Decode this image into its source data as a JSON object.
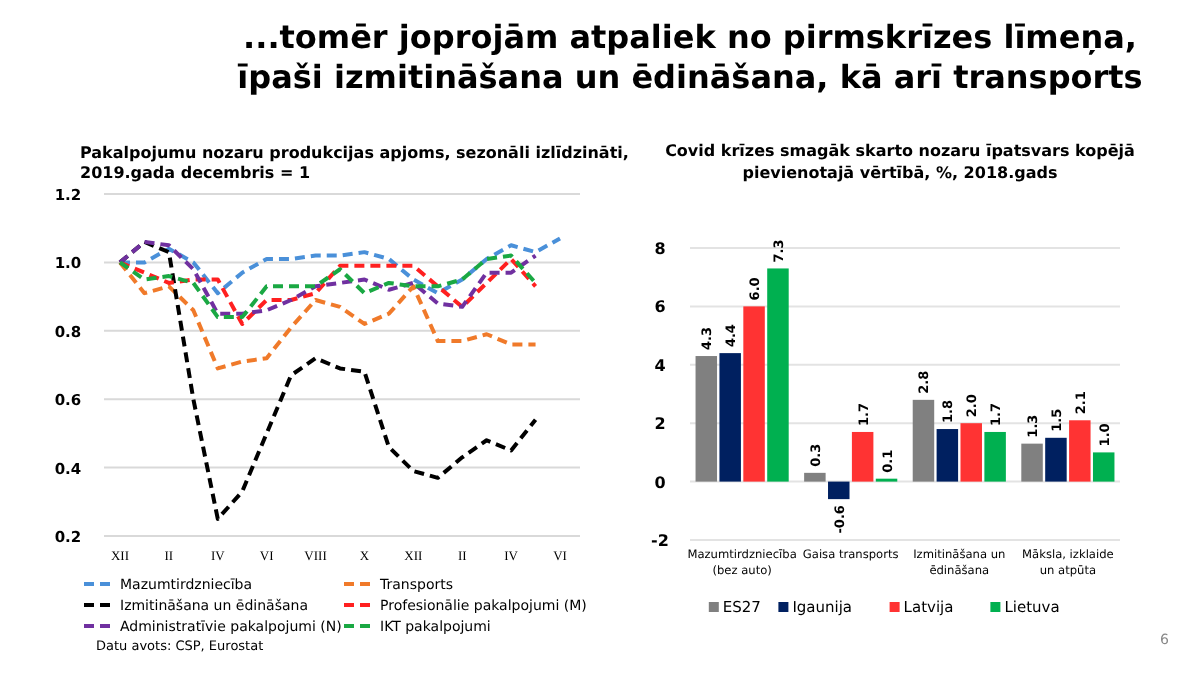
{
  "chart_data": [
    {
      "type": "line",
      "title": "Pakalpojumu nozaru produkcijas apjoms, sezonāli izlīdzināti, 2019.gada decembris = 1",
      "categories": [
        "XII",
        null,
        "II",
        null,
        "IV",
        null,
        "VI",
        null,
        "VIII",
        null,
        "X",
        null,
        "XII",
        null,
        "II",
        null,
        "IV",
        null,
        "VI"
      ],
      "series": [
        {
          "name": "Mazumtirdzniecība",
          "color": "#4a90d9",
          "values": [
            1.0,
            1.0,
            1.04,
            1.0,
            0.91,
            0.97,
            1.01,
            1.01,
            1.02,
            1.02,
            1.03,
            1.01,
            0.95,
            0.91,
            0.95,
            1.01,
            1.05,
            1.03,
            1.07
          ]
        },
        {
          "name": "Transports",
          "color": "#f07a2a",
          "values": [
            1.0,
            0.91,
            0.93,
            0.86,
            0.69,
            0.71,
            0.72,
            0.81,
            0.89,
            0.87,
            0.82,
            0.85,
            0.93,
            0.77,
            0.77,
            0.79,
            0.76,
            0.76,
            null
          ]
        },
        {
          "name": "Izmitināšana un ēdināšana",
          "color": "#000000",
          "values": [
            1.0,
            1.06,
            1.03,
            0.6,
            0.25,
            0.33,
            0.5,
            0.67,
            0.72,
            0.69,
            0.68,
            0.46,
            0.39,
            0.37,
            0.43,
            0.48,
            0.45,
            0.54,
            null
          ]
        },
        {
          "name": "Profesionālie pakalpojumi (M)",
          "color": "#ff2020",
          "values": [
            1.0,
            0.97,
            0.94,
            0.95,
            0.95,
            0.82,
            0.89,
            0.89,
            0.91,
            0.99,
            0.99,
            0.99,
            0.99,
            0.93,
            0.87,
            0.94,
            1.01,
            0.93,
            null
          ]
        },
        {
          "name": "Administratīvie pakalpojumi (N)",
          "color": "#7030a0",
          "values": [
            1.0,
            1.06,
            1.05,
            0.98,
            0.85,
            0.85,
            0.86,
            0.89,
            0.93,
            0.94,
            0.95,
            0.92,
            0.94,
            0.88,
            0.87,
            0.97,
            0.97,
            1.02,
            null
          ]
        },
        {
          "name": "IKT pakalpojumi",
          "color": "#1aa843",
          "values": [
            1.0,
            0.95,
            0.96,
            0.94,
            0.84,
            0.84,
            0.93,
            0.93,
            0.93,
            0.98,
            0.91,
            0.94,
            0.93,
            0.93,
            0.95,
            1.01,
            1.02,
            0.94,
            null
          ]
        }
      ],
      "ylim": [
        0.2,
        1.2
      ],
      "yticks": [
        0.2,
        0.4,
        0.6,
        0.8,
        {
          "value": 1,
          "label": "1.0"
        },
        1.2
      ],
      "grid": "y",
      "legend": "bottom",
      "line_style": "dashed",
      "annotations": [
        "...tomēr joprojām atpaliek no pirmskrīzes līmeņa, īpaši izmitināšana un ēdināšana, kā arī transports",
        "Datu avots: CSP, Eurostat",
        "6"
      ]
    },
    {
      "type": "bar",
      "title": "Covid krīzes smagāk skarto nozaru īpatsvars kopējā pievienotajā vērtībā, %, 2018.gads",
      "categories": [
        "Mazumtirdzniecība (bez auto)",
        "Gaisa transports",
        "Izmitināšana un ēdināšana",
        "Māksla, izklaide un atpūta"
      ],
      "series": [
        {
          "name": "ES27",
          "color": "#808080",
          "values": [
            4.3,
            0.3,
            2.8,
            1.3
          ],
          "value_labels": [
            "4.3",
            "0.3",
            "2.8",
            "1.3"
          ]
        },
        {
          "name": "Igaunija",
          "color": "#002060",
          "values": [
            4.4,
            -0.6,
            1.8,
            1.5
          ],
          "value_labels": [
            "4.4",
            "-0.6",
            "1.8",
            "1.5"
          ]
        },
        {
          "name": "Latvija",
          "color": "#ff3333",
          "values": [
            6.0,
            1.7,
            2.0,
            2.1
          ],
          "value_labels": [
            "6.0",
            "1.7",
            "2.0",
            "2.1"
          ]
        },
        {
          "name": "Lietuva",
          "color": "#00b050",
          "values": [
            7.3,
            0.1,
            1.7,
            1.0
          ],
          "value_labels": [
            "7.3",
            "0.1",
            "1.7",
            "1.0"
          ]
        }
      ],
      "ylim": [
        -2,
        8
      ],
      "yticks": [
        -2,
        0,
        2,
        4,
        6,
        8
      ],
      "grid": "y",
      "legend": "bottom"
    }
  ]
}
